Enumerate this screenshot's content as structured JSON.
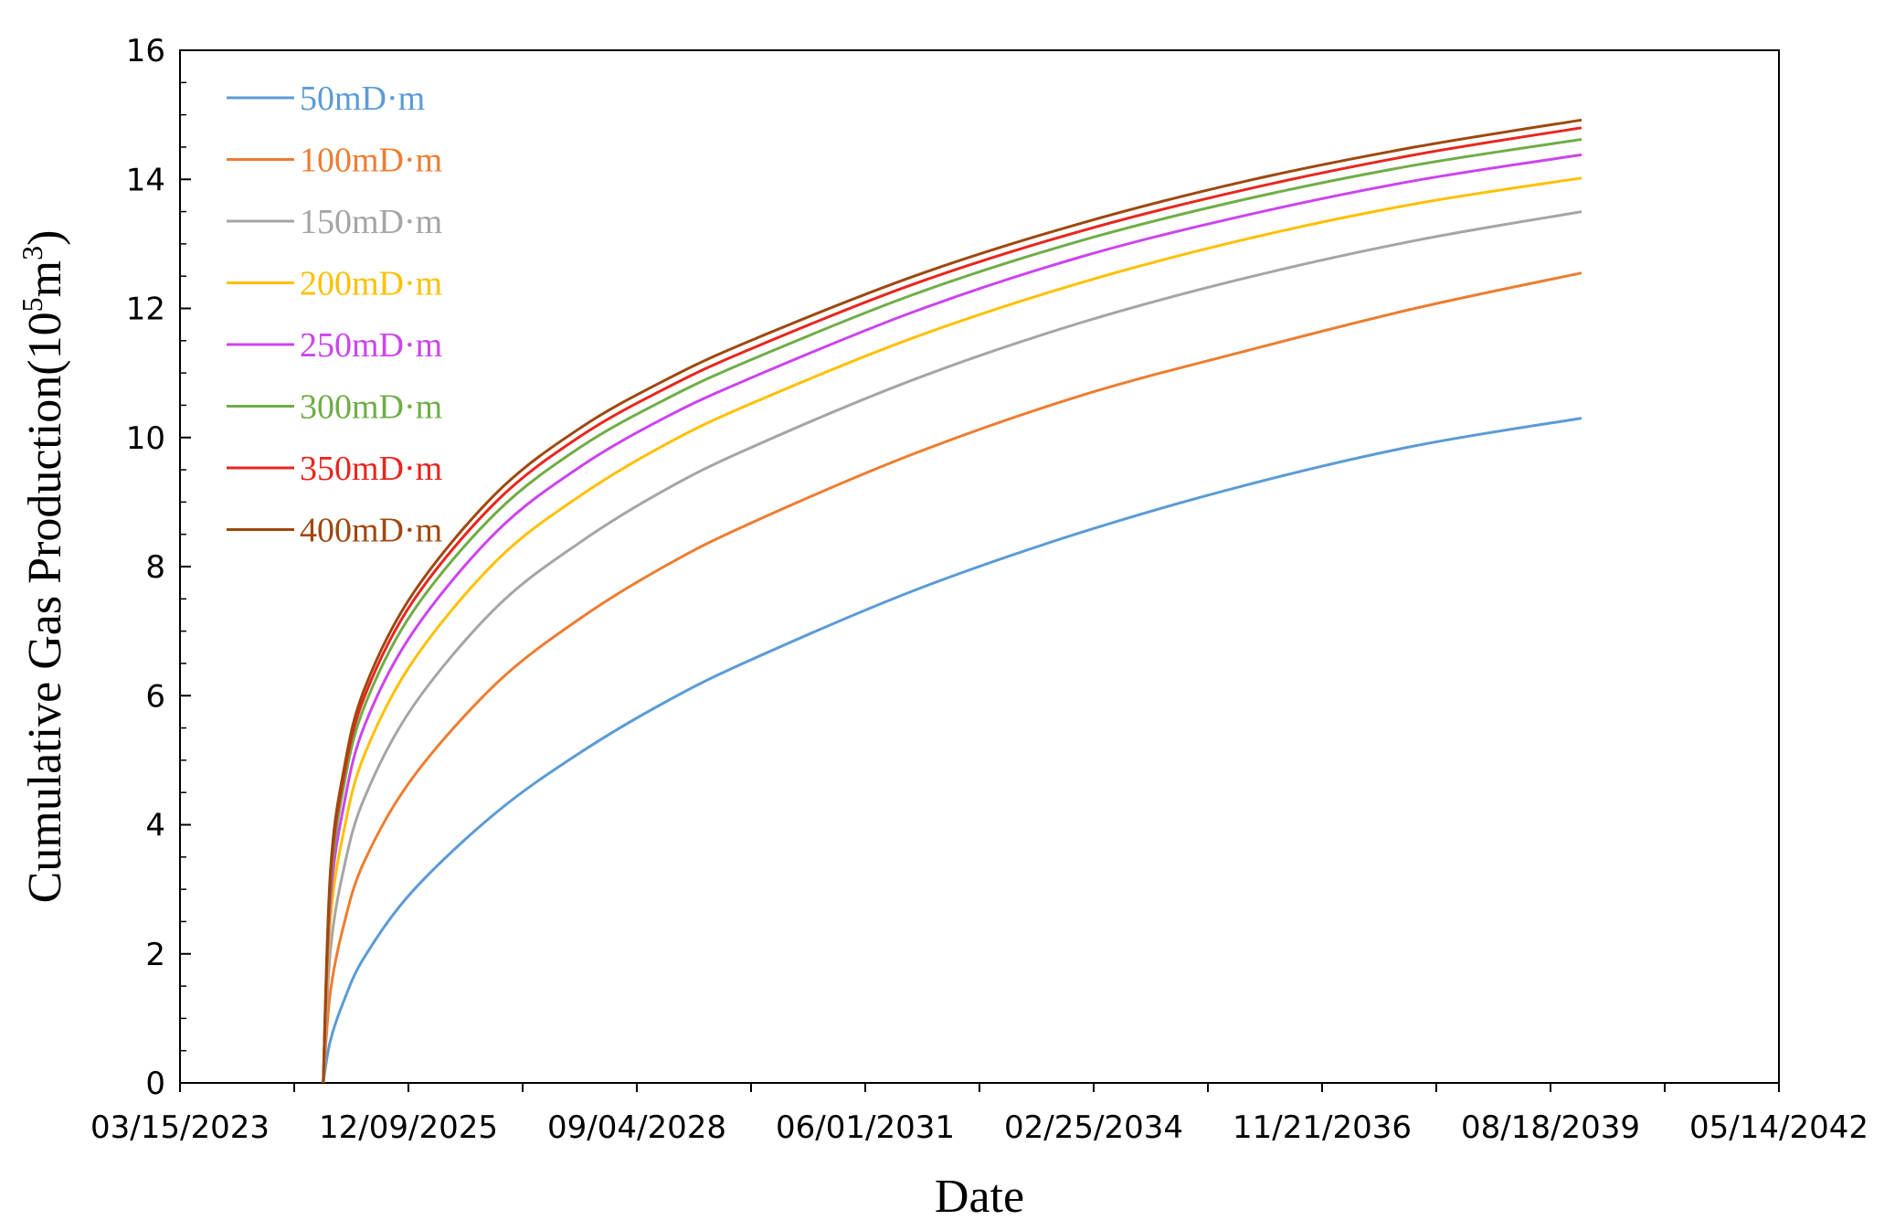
{
  "chart_data": {
    "type": "line",
    "title": "",
    "xlabel": "Date",
    "ylabel": "Cumulative Gas Production(10",
    "ylabel_sup": "5",
    "ylabel_mid": "m",
    "ylabel_sup2": "3",
    "ylabel_end": ")",
    "xlim": [
      "03/15/2023",
      "05/14/2042"
    ],
    "ylim": [
      0,
      16
    ],
    "x_ticks": [
      "03/15/2023",
      "12/09/2025",
      "09/04/2028",
      "06/01/2031",
      "02/25/2034",
      "11/21/2036",
      "08/18/2039",
      "05/14/2042"
    ],
    "y_ticks": [
      0,
      2,
      4,
      6,
      8,
      10,
      12,
      14,
      16
    ],
    "legend_position": "top-left",
    "grid": false,
    "x": [
      "2024-12-01",
      "2025-01-01",
      "2025-03-01",
      "2025-06-01",
      "2026-01-01",
      "2027-01-01",
      "2028-01-01",
      "2029-01-01",
      "2030-01-01",
      "2032-01-01",
      "2034-01-01",
      "2036-01-01",
      "2038-01-01",
      "2040-01-01"
    ],
    "series": [
      {
        "name": "50mD·m",
        "color": "#5B9BD5",
        "values": [
          0.0,
          0.65,
          1.27,
          1.96,
          2.99,
          4.2,
          5.12,
          5.89,
          6.53,
          7.63,
          8.53,
          9.27,
          9.87,
          10.3
        ]
      },
      {
        "name": "100mD·m",
        "color": "#ED7D31",
        "values": [
          0.0,
          1.4,
          2.45,
          3.45,
          4.75,
          6.2,
          7.2,
          8.0,
          8.65,
          9.75,
          10.65,
          11.35,
          12.0,
          12.55
        ]
      },
      {
        "name": "150mD·m",
        "color": "#A5A5A5",
        "values": [
          0.0,
          2.03,
          3.32,
          4.43,
          5.85,
          7.38,
          8.38,
          9.18,
          9.82,
          10.9,
          11.78,
          12.48,
          13.05,
          13.5
        ]
      },
      {
        "name": "200mD·m",
        "color": "#FFC000",
        "values": [
          0.0,
          2.5,
          3.9,
          5.1,
          6.55,
          8.1,
          9.1,
          9.88,
          10.5,
          11.55,
          12.4,
          13.08,
          13.62,
          14.02
        ]
      },
      {
        "name": "250mD·m",
        "color": "#CC44EE",
        "values": [
          0.0,
          2.8,
          4.3,
          5.55,
          7.0,
          8.55,
          9.55,
          10.3,
          10.9,
          11.95,
          12.8,
          13.45,
          13.98,
          14.38
        ]
      },
      {
        "name": "300mD·m",
        "color": "#70AD47",
        "values": [
          0.0,
          3.0,
          4.6,
          5.85,
          7.32,
          8.85,
          9.85,
          10.58,
          11.18,
          12.22,
          13.05,
          13.7,
          14.22,
          14.62
        ]
      },
      {
        "name": "350mD·m",
        "color": "#E8261E",
        "values": [
          0.0,
          3.15,
          4.75,
          6.0,
          7.48,
          9.02,
          10.02,
          10.75,
          11.35,
          12.38,
          13.2,
          13.85,
          14.38,
          14.8
        ]
      },
      {
        "name": "400mD·m",
        "color": "#9E480E",
        "values": [
          0.0,
          3.25,
          4.85,
          6.12,
          7.6,
          9.15,
          10.15,
          10.88,
          11.48,
          12.5,
          13.32,
          13.98,
          14.5,
          14.92
        ]
      }
    ]
  }
}
